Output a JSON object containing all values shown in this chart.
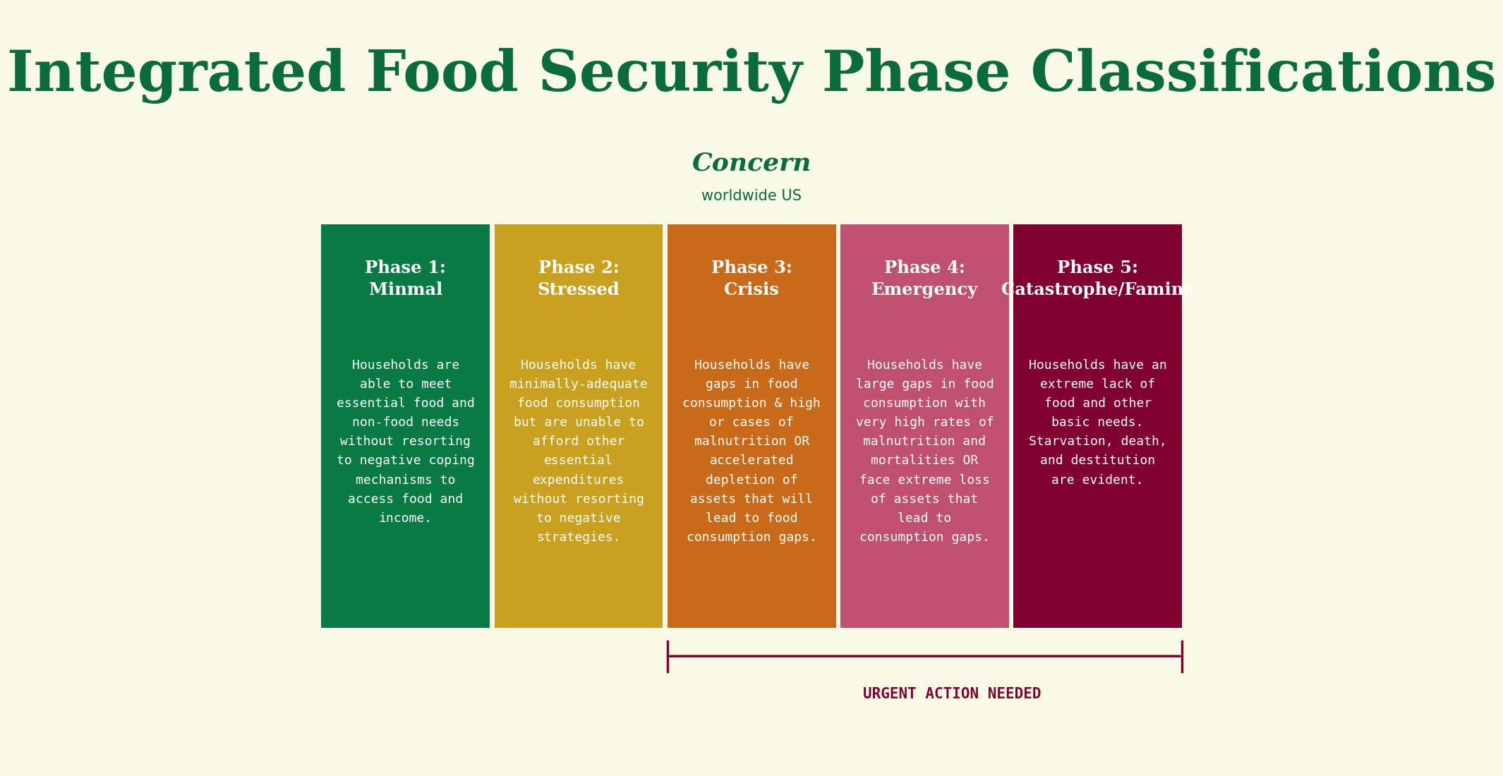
{
  "title": "Integrated Food Security Phase Classifications",
  "title_color": "#0a6b3b",
  "background_color": "#f9f9e8",
  "concern_text": "Concern",
  "concern_subtext": "worldwide US",
  "concern_color": "#0a6b3b",
  "phases": [
    {
      "title": "Phase 1:\nMinmal",
      "color": "#0a7a45",
      "text": "Households are\nable to meet\nessential food and\nnon-food needs\nwithout resorting\nto negative coping\nmechanisms to\naccess food and\nincome."
    },
    {
      "title": "Phase 2:\nStressed",
      "color": "#c9a020",
      "text": "Households have\nminimally-adequate\nfood consumption\nbut are unable to\nafford other\nessential\nexpenditures\nwithout resorting\nto negative\nstrategies."
    },
    {
      "title": "Phase 3:\nCrisis",
      "color": "#c96a1a",
      "text": "Households have\ngaps in food\nconsumption & high\nor cases of\nmalnutrition OR\naccelerated\ndepletion of\nassets that will\nlead to food\nconsumption gaps."
    },
    {
      "title": "Phase 4:\nEmergency",
      "color": "#c05070",
      "text": "Households have\nlarge gaps in food\nconsumption with\nvery high rates of\nmalnutrition and\nmortalities OR\nface extreme loss\nof assets that\nlead to\nconsumption gaps."
    },
    {
      "title": "Phase 5:\nCatastrophe/Famine",
      "color": "#800030",
      "text": "Households have an\nextreme lack of\nfood and other\nbasic needs.\nStarvation, death,\nand destitution\nare evident."
    }
  ],
  "urgent_text": "URGENT ACTION NEEDED",
  "urgent_color": "#800030",
  "arrow_color": "#800030",
  "text_color": "#ffffff"
}
